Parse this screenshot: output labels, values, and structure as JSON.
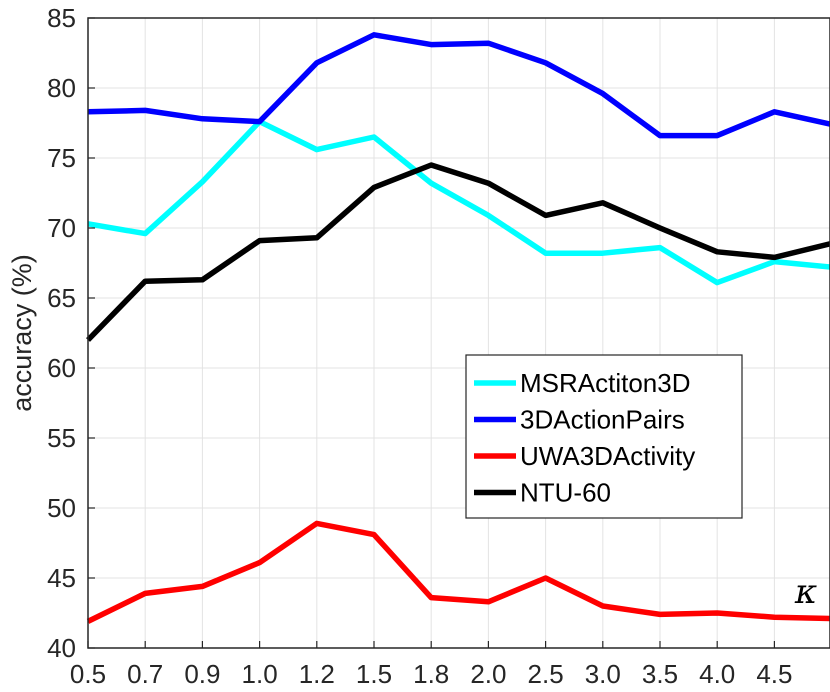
{
  "chart_data": {
    "type": "line",
    "title": "",
    "xlabel": "κ",
    "ylabel": "accuracy (%)",
    "categories": [
      "0.5",
      "0.7",
      "0.9",
      "1.0",
      "1.2",
      "1.5",
      "1.8",
      "2.0",
      "2.5",
      "3.0",
      "3.5",
      "4.0",
      "4.5",
      ""
    ],
    "ylim": [
      40,
      85
    ],
    "yticks": [
      40,
      45,
      50,
      55,
      60,
      65,
      70,
      75,
      80,
      85
    ],
    "grid": true,
    "legend_position": "right-middle",
    "series": [
      {
        "name": "MSRActiton3D",
        "color": "#00ffff",
        "values": [
          70.3,
          69.6,
          73.3,
          77.6,
          75.6,
          76.5,
          73.2,
          70.9,
          68.2,
          68.2,
          68.6,
          66.1,
          67.6,
          67.2
        ]
      },
      {
        "name": "3DActionPairs",
        "color": "#0000ff",
        "values": [
          78.3,
          78.4,
          77.8,
          77.6,
          81.8,
          83.8,
          83.1,
          83.2,
          81.8,
          79.6,
          76.6,
          76.6,
          78.3,
          77.4
        ]
      },
      {
        "name": "UWA3DActivity",
        "color": "#ff0000",
        "values": [
          41.9,
          43.9,
          44.4,
          46.1,
          48.9,
          48.1,
          43.6,
          43.3,
          45.0,
          43.0,
          42.4,
          42.5,
          42.2,
          42.1
        ]
      },
      {
        "name": "NTU-60",
        "color": "#000000",
        "values": [
          62.0,
          66.2,
          66.3,
          69.1,
          69.3,
          72.9,
          74.5,
          73.2,
          70.9,
          71.8,
          70.0,
          68.3,
          67.9,
          68.9
        ]
      }
    ]
  }
}
